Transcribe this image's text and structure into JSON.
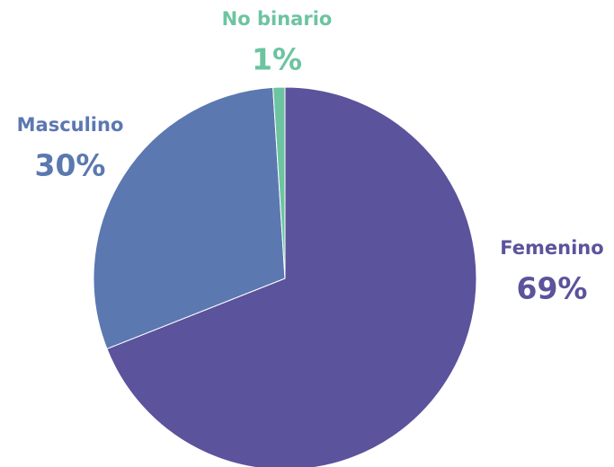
{
  "chart_data": {
    "type": "pie",
    "categories": [
      "Femenino",
      "Masculino",
      "No binario"
    ],
    "values": [
      69,
      30,
      1
    ],
    "value_labels": [
      "69%",
      "30%",
      "1%"
    ],
    "colors": [
      "#5b539c",
      "#5b78b0",
      "#6cc4a0"
    ]
  }
}
